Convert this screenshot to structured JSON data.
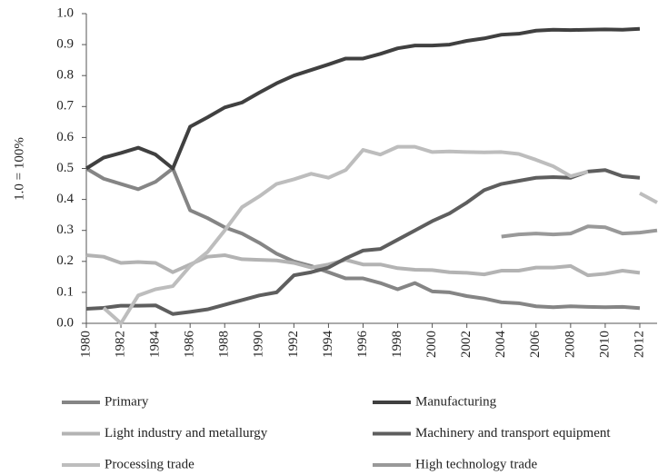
{
  "chart_data": {
    "type": "line",
    "y_label": "1.0 = 100%",
    "x": [
      1980,
      1981,
      1982,
      1983,
      1984,
      1985,
      1986,
      1987,
      1988,
      1989,
      1990,
      1991,
      1992,
      1993,
      1994,
      1995,
      1996,
      1997,
      1998,
      1999,
      2000,
      2001,
      2002,
      2003,
      2004,
      2005,
      2006,
      2007,
      2008,
      2009,
      2010,
      2011,
      2012,
      2013
    ],
    "xlim": [
      1980,
      2013
    ],
    "xticks": [
      1980,
      1982,
      1984,
      1986,
      1988,
      1990,
      1992,
      1994,
      1996,
      1998,
      2000,
      2002,
      2004,
      2006,
      2008,
      2010,
      2012
    ],
    "ylim": [
      0,
      1
    ],
    "yticks": [
      {
        "value": 0,
        "label": "0.0"
      },
      0.1,
      0.2,
      0.3,
      0.4,
      0.5,
      0.6,
      0.7,
      0.8,
      0.9,
      {
        "value": 1,
        "label": "1.0"
      }
    ],
    "series": [
      {
        "name": "Primary",
        "color": "#858585",
        "values": [
          0.5,
          0.467,
          0.45,
          0.433,
          0.457,
          0.5,
          0.365,
          0.34,
          0.31,
          0.29,
          0.26,
          0.225,
          0.2,
          0.185,
          0.165,
          0.145,
          0.145,
          0.13,
          0.11,
          0.13,
          0.103,
          0.1,
          0.088,
          0.08,
          0.068,
          0.065,
          0.055,
          0.052,
          0.055,
          0.053,
          0.052,
          0.053,
          0.049,
          null
        ]
      },
      {
        "name": "Manufacturing",
        "color": "#404040",
        "values": [
          0.5,
          0.535,
          0.55,
          0.567,
          0.545,
          0.5,
          0.635,
          0.665,
          0.697,
          0.713,
          0.745,
          0.775,
          0.8,
          0.818,
          0.836,
          0.855,
          0.855,
          0.87,
          0.888,
          0.897,
          0.897,
          0.9,
          0.912,
          0.92,
          0.932,
          0.935,
          0.945,
          0.948,
          0.947,
          0.948,
          0.949,
          0.948,
          0.951,
          null
        ]
      },
      {
        "name": "Light industry and metallurgy",
        "color": "#b3b3b3",
        "values": [
          0.22,
          0.215,
          0.195,
          0.198,
          0.195,
          0.165,
          0.19,
          0.215,
          0.22,
          0.207,
          0.205,
          0.203,
          0.195,
          0.18,
          0.19,
          0.205,
          0.19,
          0.19,
          0.178,
          0.173,
          0.172,
          0.165,
          0.163,
          0.158,
          0.17,
          0.17,
          0.18,
          0.18,
          0.185,
          0.155,
          0.16,
          0.17,
          0.163,
          null
        ]
      },
      {
        "name": "Machinery and transport equipment",
        "color": "#5e5e5e",
        "values": [
          0.047,
          0.05,
          0.057,
          0.057,
          0.058,
          0.03,
          0.037,
          0.045,
          0.06,
          0.075,
          0.09,
          0.1,
          0.155,
          0.165,
          0.18,
          0.21,
          0.235,
          0.24,
          0.27,
          0.3,
          0.33,
          0.355,
          0.39,
          0.43,
          0.45,
          0.46,
          0.47,
          0.472,
          0.47,
          0.49,
          0.495,
          0.475,
          0.47,
          null
        ]
      },
      {
        "name": "Processing trade",
        "color": "#bdbdbd",
        "values": [
          null,
          0.05,
          0.0,
          0.09,
          0.11,
          0.12,
          0.185,
          0.23,
          0.3,
          0.375,
          0.41,
          0.45,
          0.465,
          0.483,
          0.47,
          0.495,
          0.56,
          0.545,
          0.57,
          0.57,
          0.553,
          0.555,
          0.553,
          0.552,
          0.553,
          0.547,
          0.528,
          0.507,
          0.475,
          0.49,
          null,
          null,
          0.42,
          0.39
        ]
      },
      {
        "name": "High technology trade",
        "color": "#999999",
        "values": [
          null,
          null,
          null,
          null,
          null,
          null,
          null,
          null,
          null,
          null,
          null,
          null,
          null,
          null,
          null,
          null,
          null,
          null,
          null,
          null,
          null,
          null,
          null,
          null,
          0.28,
          0.287,
          0.29,
          0.287,
          0.29,
          0.313,
          0.31,
          0.29,
          0.293,
          0.3
        ]
      }
    ]
  }
}
